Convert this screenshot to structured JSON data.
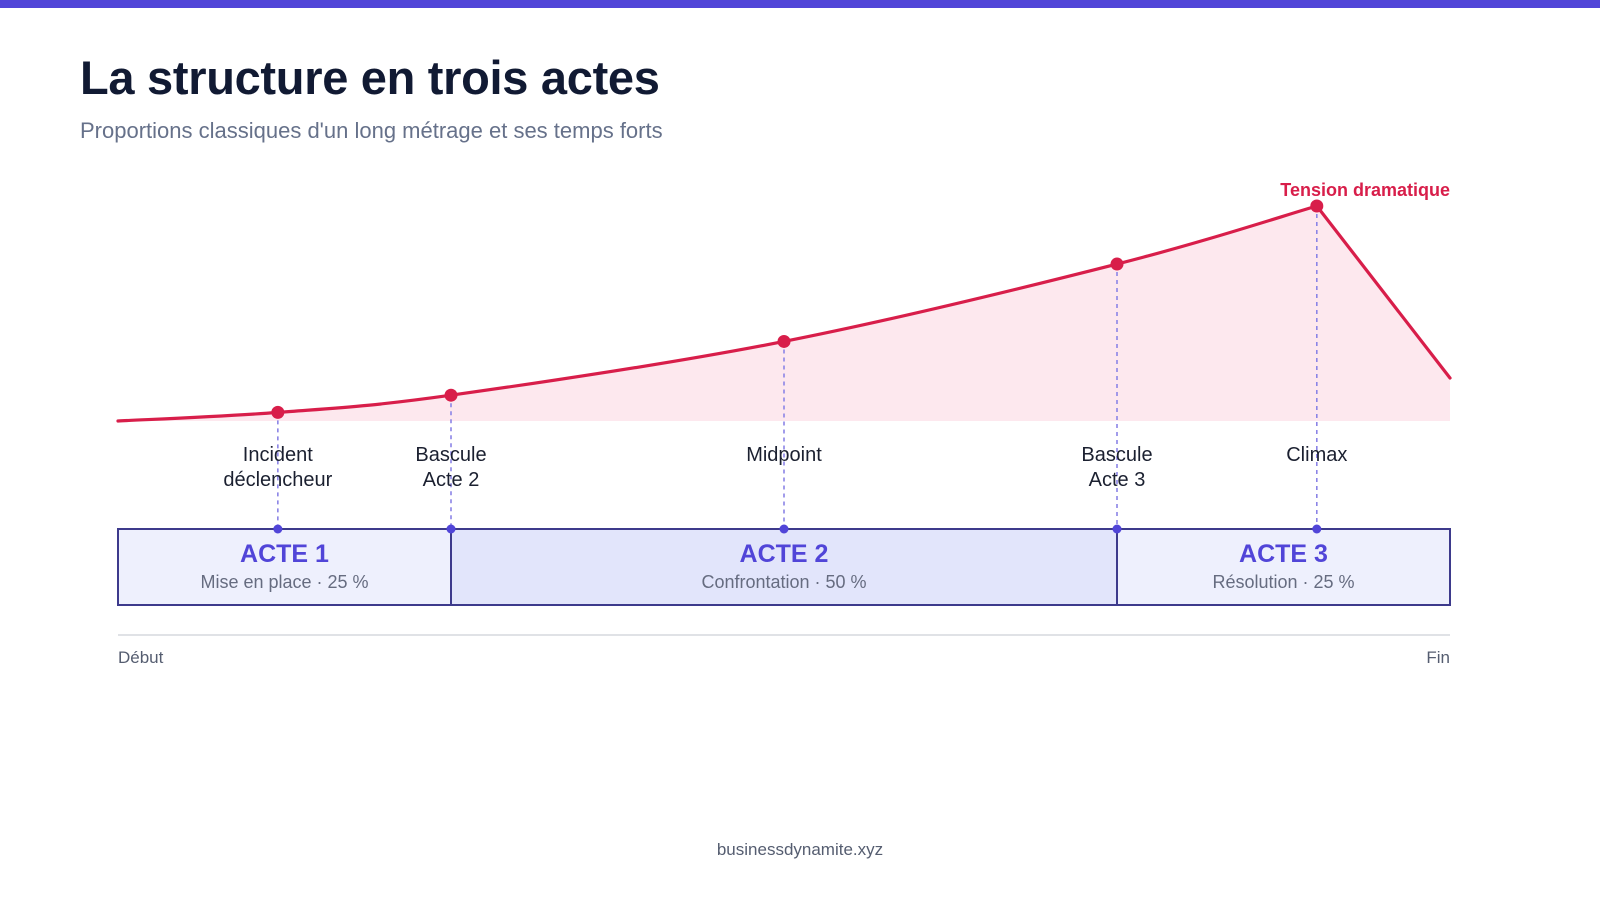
{
  "header": {
    "title": "La structure en trois actes",
    "subtitle": "Proportions classiques d'un long métrage et ses temps forts"
  },
  "curve": {
    "series_name": "Tension dramatique",
    "color": "#d81e4a",
    "fill_color": "#fde8ee"
  },
  "beats": [
    {
      "id": "incident",
      "label_lines": [
        "Incident",
        "déclencheur"
      ],
      "position": 0.12,
      "tension": 0.04
    },
    {
      "id": "bascule-acte-2",
      "label_lines": [
        "Bascule",
        "Acte 2"
      ],
      "position": 0.25,
      "tension": 0.12
    },
    {
      "id": "midpoint",
      "label_lines": [
        "Midpoint"
      ],
      "position": 0.5,
      "tension": 0.37
    },
    {
      "id": "bascule-acte-3",
      "label_lines": [
        "Bascule",
        "Acte 3"
      ],
      "position": 0.75,
      "tension": 0.73
    },
    {
      "id": "climax",
      "label_lines": [
        "Climax"
      ],
      "position": 0.9,
      "tension": 1.0
    }
  ],
  "curve_points": [
    {
      "position": 0.0,
      "tension": 0.0
    },
    {
      "position": 0.12,
      "tension": 0.04
    },
    {
      "position": 0.25,
      "tension": 0.12
    },
    {
      "position": 0.5,
      "tension": 0.37
    },
    {
      "position": 0.75,
      "tension": 0.73
    },
    {
      "position": 0.9,
      "tension": 1.0
    },
    {
      "position": 1.0,
      "tension": 0.2
    }
  ],
  "acts": [
    {
      "id": "acte-1",
      "name": "ACTE 1",
      "description": "Mise en place · 25 %",
      "start": 0.0,
      "end": 0.25,
      "fill": "#eef0fd"
    },
    {
      "id": "acte-2",
      "name": "ACTE 2",
      "description": "Confrontation · 50 %",
      "start": 0.25,
      "end": 0.75,
      "fill": "#e2e5fb"
    },
    {
      "id": "acte-3",
      "name": "ACTE 3",
      "description": "Résolution · 25 %",
      "start": 0.75,
      "end": 1.0,
      "fill": "#eef0fd"
    }
  ],
  "axis": {
    "start_label": "Début",
    "end_label": "Fin"
  },
  "colors": {
    "accent": "#5145d8",
    "act_border": "#3d3a8c",
    "heading": "#111a33"
  },
  "footer": {
    "source": "businessdynamite.xyz"
  }
}
